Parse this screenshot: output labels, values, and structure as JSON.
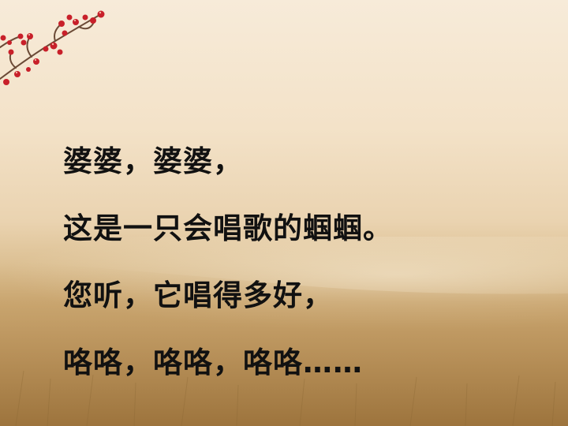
{
  "slide": {
    "lines": [
      "婆婆，婆婆，",
      "这是一只会唱歌的蝈蝈。",
      "您听，它唱得多好，",
      "咯咯，咯咯，咯咯……"
    ]
  },
  "colors": {
    "background_top": "#f7ebd9",
    "field": "#b98f55",
    "berries": "#c8202a",
    "text": "#111111"
  }
}
